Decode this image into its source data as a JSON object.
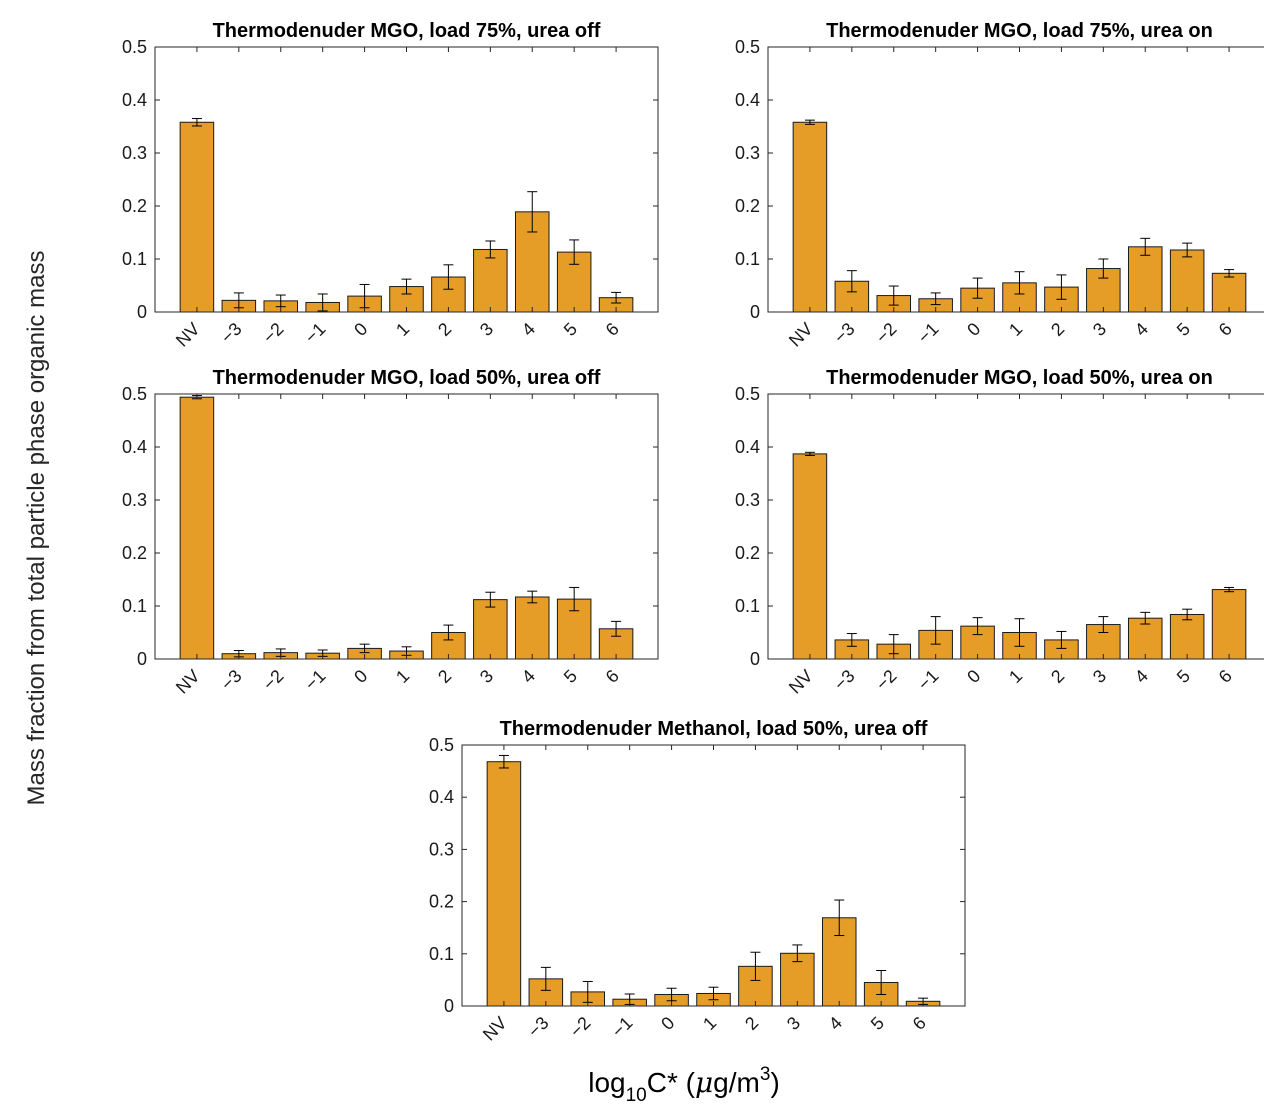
{
  "figure": {
    "ylabel": "Mass fraction from total particle phase organic mass",
    "xlabel": {
      "base": "log",
      "base_sub": "10",
      "main": "C* (",
      "mu": "μ",
      "unit": "g/m",
      "unit_sup": "3",
      "close": ")"
    }
  },
  "colors": {
    "bar_fill": "#E69D28",
    "bar_edge": "#1a1a1a",
    "axis": "#262626"
  },
  "chart_data": [
    {
      "type": "bar",
      "title": "Thermodenuder MGO, load 75%, urea off",
      "categories": [
        "NV",
        "-3",
        "-2",
        "-1",
        "0",
        "1",
        "2",
        "3",
        "4",
        "5",
        "6"
      ],
      "values": [
        0.358,
        0.022,
        0.021,
        0.018,
        0.03,
        0.048,
        0.066,
        0.118,
        0.189,
        0.113,
        0.027
      ],
      "errors": [
        0.007,
        0.014,
        0.011,
        0.016,
        0.022,
        0.014,
        0.023,
        0.016,
        0.038,
        0.023,
        0.01
      ],
      "ylim": [
        0,
        0.5
      ],
      "yticks": [
        "0",
        "0.1",
        "0.2",
        "0.3",
        "0.4",
        "0.5"
      ],
      "xlabel": "",
      "ylabel": ""
    },
    {
      "type": "bar",
      "title": "Thermodenuder MGO, load 75%, urea on",
      "categories": [
        "NV",
        "-3",
        "-2",
        "-1",
        "0",
        "1",
        "2",
        "3",
        "4",
        "5",
        "6"
      ],
      "values": [
        0.358,
        0.058,
        0.031,
        0.025,
        0.045,
        0.055,
        0.047,
        0.082,
        0.123,
        0.117,
        0.073
      ],
      "errors": [
        0.004,
        0.02,
        0.018,
        0.011,
        0.019,
        0.021,
        0.023,
        0.018,
        0.016,
        0.013,
        0.007
      ],
      "ylim": [
        0,
        0.5
      ],
      "yticks": [
        "0",
        "0.1",
        "0.2",
        "0.3",
        "0.4",
        "0.5"
      ],
      "xlabel": "",
      "ylabel": ""
    },
    {
      "type": "bar",
      "title": "Thermodenuder MGO, load 50%, urea off",
      "categories": [
        "NV",
        "-3",
        "-2",
        "-1",
        "0",
        "1",
        "2",
        "3",
        "4",
        "5",
        "6"
      ],
      "values": [
        0.494,
        0.01,
        0.012,
        0.011,
        0.02,
        0.015,
        0.05,
        0.112,
        0.117,
        0.113,
        0.057
      ],
      "errors": [
        0.003,
        0.006,
        0.007,
        0.006,
        0.008,
        0.008,
        0.014,
        0.014,
        0.011,
        0.022,
        0.014
      ],
      "ylim": [
        0,
        0.5
      ],
      "yticks": [
        "0",
        "0.1",
        "0.2",
        "0.3",
        "0.4",
        "0.5"
      ],
      "xlabel": "",
      "ylabel": ""
    },
    {
      "type": "bar",
      "title": "Thermodenuder MGO, load 50%, urea on",
      "categories": [
        "NV",
        "-3",
        "-2",
        "-1",
        "0",
        "1",
        "2",
        "3",
        "4",
        "5",
        "6"
      ],
      "values": [
        0.387,
        0.036,
        0.028,
        0.054,
        0.062,
        0.05,
        0.036,
        0.065,
        0.077,
        0.084,
        0.131
      ],
      "errors": [
        0.003,
        0.012,
        0.018,
        0.026,
        0.016,
        0.026,
        0.016,
        0.015,
        0.011,
        0.01,
        0.004
      ],
      "ylim": [
        0,
        0.5
      ],
      "yticks": [
        "0",
        "0.1",
        "0.2",
        "0.3",
        "0.4",
        "0.5"
      ],
      "xlabel": "",
      "ylabel": ""
    },
    {
      "type": "bar",
      "title": "Thermodenuder Methanol, load 50%, urea off",
      "categories": [
        "NV",
        "-3",
        "-2",
        "-1",
        "0",
        "1",
        "2",
        "3",
        "4",
        "5",
        "6"
      ],
      "values": [
        0.468,
        0.052,
        0.027,
        0.013,
        0.022,
        0.024,
        0.076,
        0.101,
        0.169,
        0.045,
        0.009
      ],
      "errors": [
        0.012,
        0.022,
        0.02,
        0.01,
        0.012,
        0.012,
        0.027,
        0.016,
        0.034,
        0.023,
        0.006
      ],
      "ylim": [
        0,
        0.5
      ],
      "yticks": [
        "0",
        "0.1",
        "0.2",
        "0.3",
        "0.4",
        "0.5"
      ],
      "xlabel": "",
      "ylabel": ""
    }
  ]
}
